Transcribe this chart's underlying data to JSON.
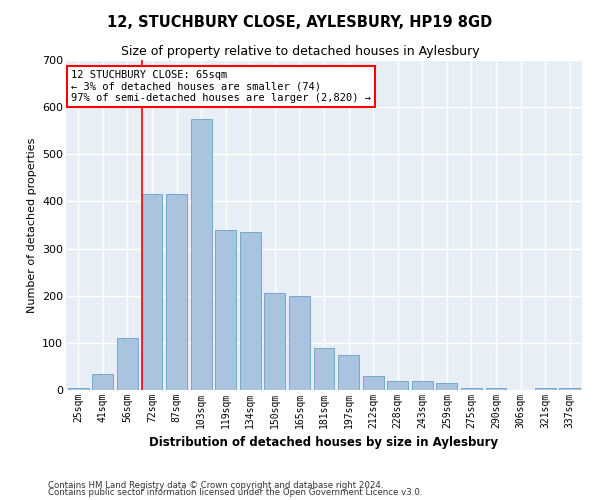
{
  "title": "12, STUCHBURY CLOSE, AYLESBURY, HP19 8GD",
  "subtitle": "Size of property relative to detached houses in Aylesbury",
  "xlabel": "Distribution of detached houses by size in Aylesbury",
  "ylabel": "Number of detached properties",
  "categories": [
    "25sqm",
    "41sqm",
    "56sqm",
    "72sqm",
    "87sqm",
    "103sqm",
    "119sqm",
    "134sqm",
    "150sqm",
    "165sqm",
    "181sqm",
    "197sqm",
    "212sqm",
    "228sqm",
    "243sqm",
    "259sqm",
    "275sqm",
    "290sqm",
    "306sqm",
    "321sqm",
    "337sqm"
  ],
  "values": [
    5,
    35,
    110,
    415,
    415,
    575,
    340,
    335,
    205,
    200,
    90,
    75,
    30,
    20,
    20,
    15,
    5,
    5,
    0,
    5,
    5
  ],
  "bar_color": "#aac4e0",
  "bar_edge_color": "#6a9fc8",
  "vline_color": "red",
  "vline_x": 2.58,
  "annotation_text": "12 STUCHBURY CLOSE: 65sqm\n← 3% of detached houses are smaller (74)\n97% of semi-detached houses are larger (2,820) →",
  "annotation_box_color": "white",
  "annotation_box_edge": "red",
  "ylim": [
    0,
    700
  ],
  "yticks": [
    0,
    100,
    200,
    300,
    400,
    500,
    600,
    700
  ],
  "bg_color": "#e8eef5",
  "grid_color": "white",
  "footer_line1": "Contains HM Land Registry data © Crown copyright and database right 2024.",
  "footer_line2": "Contains public sector information licensed under the Open Government Licence v3.0."
}
